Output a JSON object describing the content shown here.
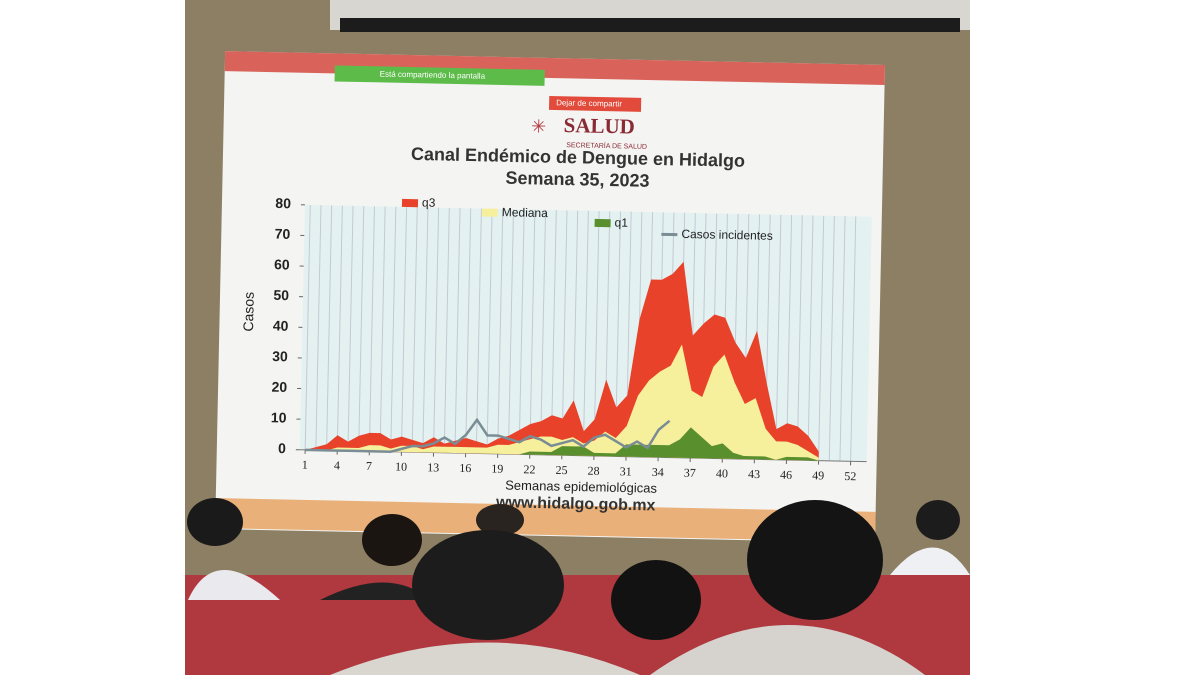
{
  "screen": {
    "share_notice": "Está compartiendo la pantalla",
    "stop_button": "Dejar de compartir",
    "logo_title": "SALUD",
    "logo_subtitle": "SECRETARÍA DE SALUD",
    "url": "www.hidalgo.gob.mx"
  },
  "chart_data": {
    "type": "area",
    "title": "Canal Endémico de Dengue en Hidalgo",
    "subtitle": "Semana 35, 2023",
    "y_label": "Casos",
    "x_label": "Semanas epidemiológicas",
    "x": [
      1,
      2,
      3,
      4,
      5,
      6,
      7,
      8,
      9,
      10,
      11,
      12,
      13,
      14,
      15,
      16,
      17,
      18,
      19,
      20,
      21,
      22,
      23,
      24,
      25,
      26,
      27,
      28,
      29,
      30,
      31,
      32,
      33,
      34,
      35,
      36,
      37,
      38,
      39,
      40,
      41,
      42,
      43,
      44,
      45,
      46,
      47,
      48,
      49,
      50,
      51,
      52
    ],
    "xlim": [
      0.5,
      53.5
    ],
    "xticks": [
      1,
      4,
      7,
      10,
      13,
      16,
      19,
      22,
      25,
      28,
      31,
      34,
      37,
      40,
      43,
      46,
      49,
      52
    ],
    "ylim": [
      0,
      80
    ],
    "yticks": [
      0,
      10,
      20,
      30,
      40,
      50,
      60,
      70,
      80
    ],
    "grid": true,
    "legend": "top",
    "series": [
      {
        "name": "q3",
        "color": "#e8432a",
        "values": [
          0,
          1,
          2,
          5,
          3,
          5,
          6,
          6,
          4,
          5,
          4,
          3,
          5,
          3,
          4,
          5,
          4,
          3,
          5,
          6,
          8,
          10,
          11,
          13,
          12,
          18,
          8,
          12,
          25,
          16,
          20,
          45,
          58,
          58,
          60,
          64,
          40,
          44,
          47,
          46,
          38,
          33,
          42,
          25,
          10,
          12,
          11,
          8,
          3,
          null,
          null,
          null
        ]
      },
      {
        "name": "Mediana",
        "color": "#f6ef9c",
        "values": [
          0,
          0,
          0,
          1,
          1,
          1,
          2,
          2,
          1,
          2,
          2,
          1,
          2,
          2,
          2,
          2,
          2,
          2,
          3,
          3,
          4,
          5,
          6,
          6,
          5,
          6,
          4,
          5,
          8,
          6,
          10,
          20,
          25,
          28,
          30,
          37,
          22,
          20,
          30,
          34,
          25,
          18,
          20,
          10,
          6,
          6,
          5,
          3,
          1,
          null,
          null,
          null
        ]
      },
      {
        "name": "q1",
        "color": "#5a8f2e",
        "values": [
          0,
          0,
          0,
          0,
          0,
          0,
          0,
          0,
          0,
          0,
          0,
          0,
          0,
          0,
          0,
          0,
          0,
          0,
          0,
          0,
          0,
          1,
          1,
          1,
          3,
          3,
          3,
          1,
          1,
          1,
          4,
          4,
          4,
          4,
          4,
          6,
          10,
          7,
          4,
          5,
          2,
          1,
          1,
          1,
          0,
          1,
          1,
          1,
          0,
          null,
          null,
          null
        ]
      },
      {
        "name": "Casos incidentes",
        "color": "#7a8c94",
        "line": true,
        "values": [
          0,
          0,
          0,
          0,
          0,
          0,
          0,
          0,
          0,
          1,
          2,
          2,
          3,
          5,
          3,
          6,
          11,
          6,
          6,
          5,
          4,
          6,
          5,
          3,
          4,
          5,
          3,
          6,
          7,
          5,
          3,
          5,
          3,
          9,
          12,
          null,
          null,
          null,
          null,
          null,
          null,
          null,
          null,
          null,
          null,
          null,
          null,
          null,
          null,
          null,
          null,
          null
        ]
      }
    ]
  }
}
